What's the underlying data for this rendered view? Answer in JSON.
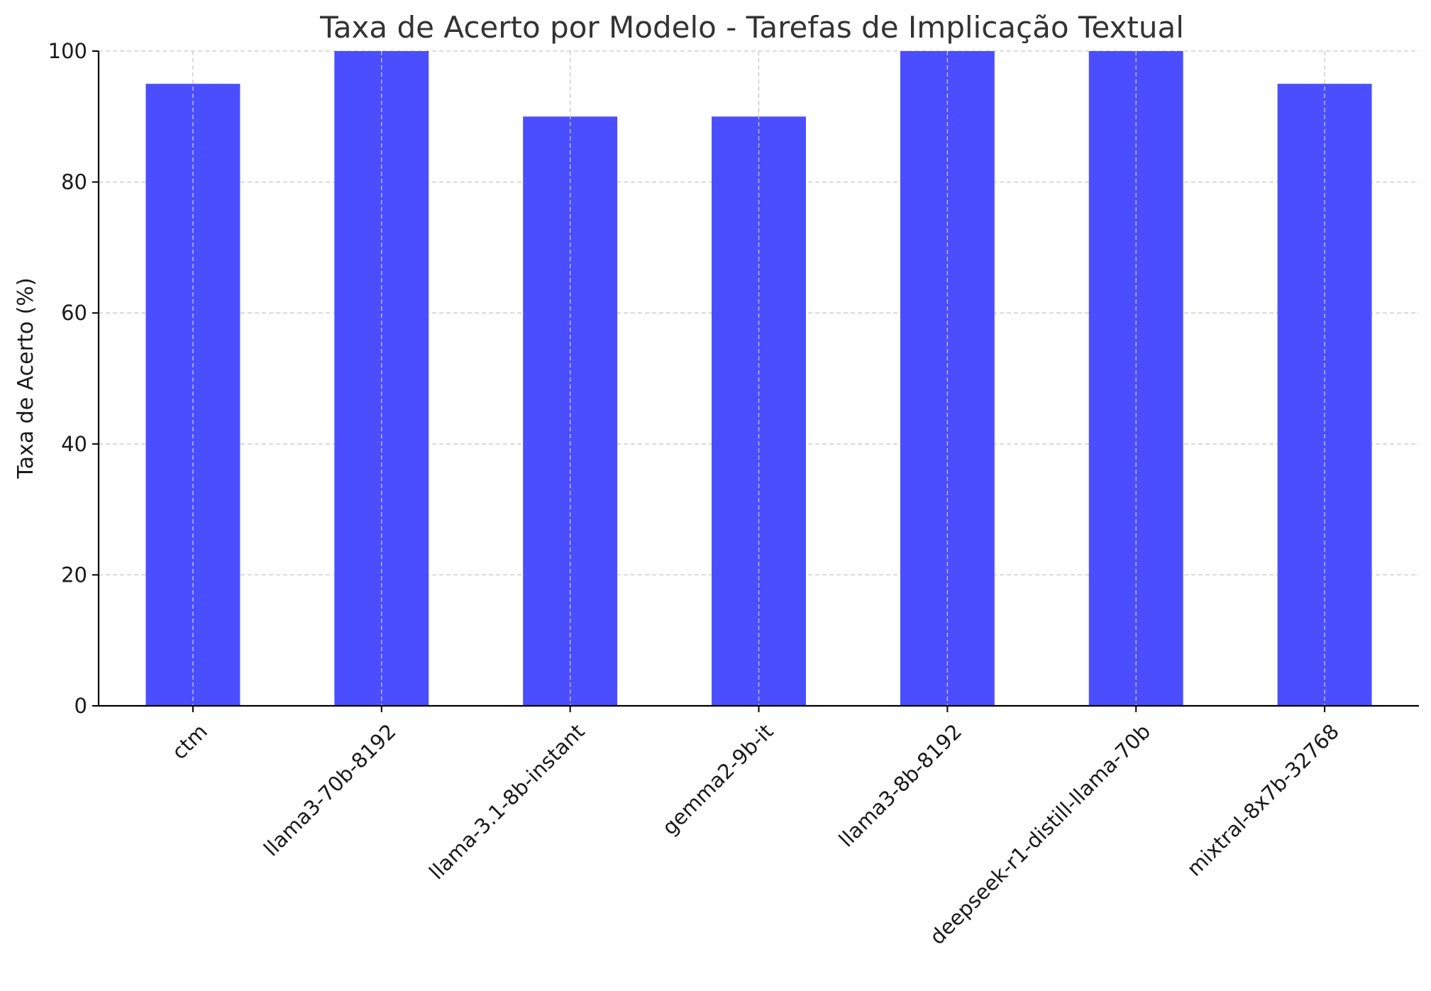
{
  "chart_data": {
    "type": "bar",
    "title": "Taxa de Acerto por Modelo - Tarefas de Implicação Textual",
    "xlabel": "",
    "ylabel": "Taxa de Acerto (%)",
    "categories": [
      "ctm",
      "llama3-70b-8192",
      "llama-3.1-8b-instant",
      "gemma2-9b-it",
      "llama3-8b-8192",
      "deepseek-r1-distill-llama-70b",
      "mixtral-8x7b-32768"
    ],
    "values": [
      95,
      100,
      90,
      90,
      100,
      100,
      95
    ],
    "ylim": [
      0,
      100
    ],
    "yticks": [
      0,
      20,
      40,
      60,
      80,
      100
    ],
    "grid": true,
    "legend": "none",
    "colors": {
      "bar": "#4b4eff",
      "grid": "#c8c8c8",
      "axis": "#000000",
      "text": "#333333"
    }
  }
}
